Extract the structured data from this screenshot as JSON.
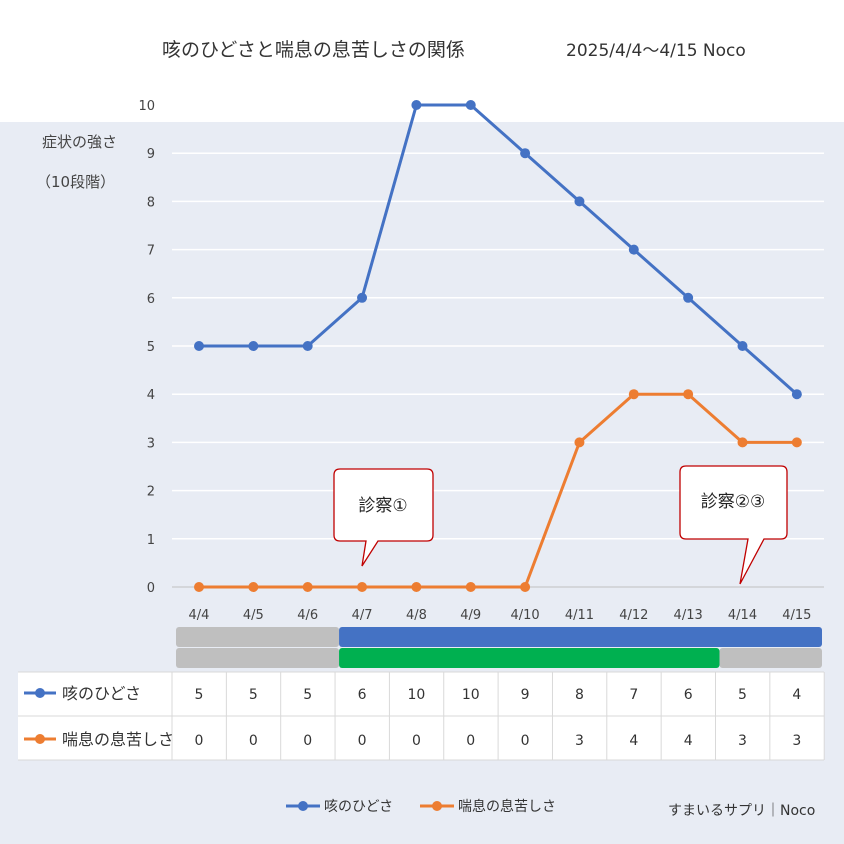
{
  "title": "咳のひどさと喘息の息苦しさの関係",
  "subtitle": "2025/4/4～4/15 Noco",
  "y_axis_label_line1": "症状の強さ",
  "y_axis_label_line2": "（10段階）",
  "callouts": [
    {
      "text": "診察①",
      "date": "4/7"
    },
    {
      "text": "診察②③",
      "date": "4/14"
    }
  ],
  "credit": "すまいるサプリ｜Noco",
  "colors": {
    "cough": "#4472c4",
    "asthma": "#ed7d31",
    "callout_border": "#c00000",
    "bar_blue": "#4472c4",
    "bar_green": "#00b050",
    "bar_gray": "#bfbfbf",
    "background": "#e8ecf4"
  },
  "period_bars": [
    {
      "color": "bar_gray",
      "from": "4/4",
      "to": "4/7",
      "row": "upper"
    },
    {
      "color": "bar_gray",
      "from": "4/4",
      "to": "4/7",
      "row": "lower"
    },
    {
      "color": "bar_blue",
      "from": "4/7",
      "to": "4/15",
      "row": "upper"
    },
    {
      "color": "bar_green",
      "from": "4/7",
      "to": "4/14",
      "row": "lower"
    },
    {
      "color": "bar_gray",
      "from": "4/14",
      "to": "4/15",
      "row": "lower"
    }
  ],
  "chart_data": {
    "type": "line",
    "title": "咳のひどさと喘息の息苦しさの関係",
    "ylabel": "症状の強さ（10段階）",
    "xlabel": "",
    "categories": [
      "4/4",
      "4/5",
      "4/6",
      "4/7",
      "4/8",
      "4/9",
      "4/10",
      "4/11",
      "4/12",
      "4/13",
      "4/14",
      "4/15"
    ],
    "ylim": [
      0,
      10
    ],
    "yticks": [
      0,
      1,
      2,
      3,
      4,
      5,
      6,
      7,
      8,
      9,
      10
    ],
    "grid": true,
    "legend": "bottom",
    "series": [
      {
        "name": "咳のひどさ",
        "color": "#4472c4",
        "values": [
          5,
          5,
          5,
          6,
          10,
          10,
          9,
          8,
          7,
          6,
          5,
          4
        ]
      },
      {
        "name": "喘息の息苦しさ",
        "color": "#ed7d31",
        "values": [
          0,
          0,
          0,
          0,
          0,
          0,
          0,
          3,
          4,
          4,
          3,
          3
        ]
      }
    ],
    "table": true
  }
}
